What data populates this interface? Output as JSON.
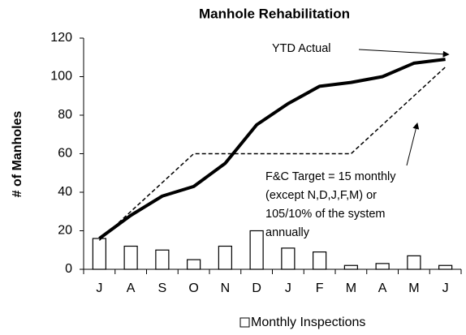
{
  "chart_data": {
    "type": "bar",
    "title": "Manhole Rehabilitation",
    "y_label": "# of Manholes",
    "categories": [
      "J",
      "A",
      "S",
      "O",
      "N",
      "D",
      "J",
      "F",
      "M",
      "A",
      "M",
      "J"
    ],
    "series": [
      {
        "name": "Monthly Inspections",
        "type": "bar",
        "color": "#ffffff",
        "values": [
          16,
          12,
          10,
          5,
          12,
          20,
          11,
          9,
          2,
          3,
          7,
          2
        ]
      },
      {
        "name": "YTD Actual",
        "type": "line",
        "color": "#000000",
        "values": [
          16,
          28,
          38,
          43,
          55,
          75,
          86,
          95,
          97,
          100,
          107,
          109
        ]
      },
      {
        "type": "line",
        "dashed": true,
        "color": "#000000",
        "values": [
          15,
          30,
          45,
          60,
          60,
          60,
          60,
          60,
          60,
          75,
          90,
          105
        ]
      }
    ],
    "annotations": [
      "F&C Target = 15 monthly",
      "(except N,D,J,F,M) or",
      "105/10% of the system",
      "annually"
    ],
    "ylim": [
      0,
      120
    ],
    "yticks": [
      0,
      20,
      40,
      60,
      80,
      100,
      120
    ],
    "legend": "bottom"
  }
}
